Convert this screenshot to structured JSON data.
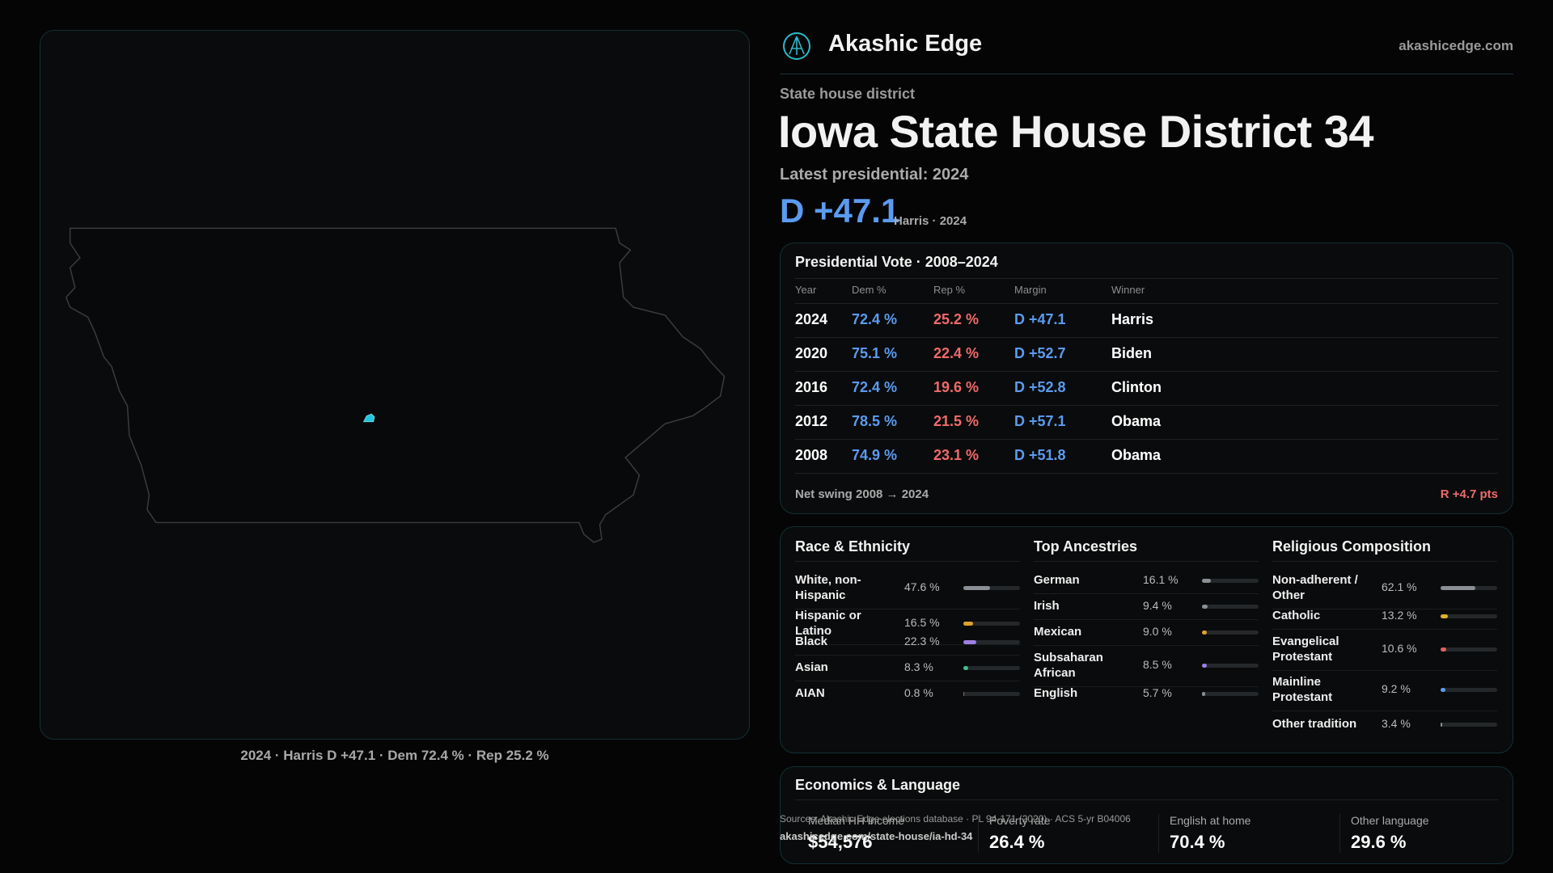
{
  "brand": {
    "name": "Akashic Edge",
    "url": "akashicedge.com"
  },
  "map": {
    "caption": "2024 · Harris D +47.1 · Dem 72.4 % · Rep 25.2 %"
  },
  "header": {
    "kicker": "State house district",
    "title": "Iowa State House District 34",
    "subtitle": "Latest presidential: 2024",
    "margin": "D +47.1",
    "margin_note": "Harris · 2024"
  },
  "presidential": {
    "title": "Presidential Vote · 2008–2024",
    "columns": [
      "Year",
      "Dem %",
      "Rep %",
      "Margin",
      "Winner"
    ],
    "rows": [
      [
        "2024",
        "72.4 %",
        "25.2 %",
        "D +47.1",
        "Harris"
      ],
      [
        "2020",
        "75.1 %",
        "22.4 %",
        "D +52.7",
        "Biden"
      ],
      [
        "2016",
        "72.4 %",
        "19.6 %",
        "D +52.8",
        "Clinton"
      ],
      [
        "2012",
        "78.5 %",
        "21.5 %",
        "D +57.1",
        "Obama"
      ],
      [
        "2008",
        "74.9 %",
        "23.1 %",
        "D +51.8",
        "Obama"
      ]
    ],
    "footer_label": "Net swing 2008 → 2024",
    "footer_value": "R +4.7 pts"
  },
  "demographics": [
    {
      "title": "Race & Ethnicity",
      "xlim": [
        0,
        100
      ],
      "rows": [
        {
          "label": "White, non-Hispanic",
          "value": 47.6,
          "value_label": "47.6 %",
          "color": "#8a8f96"
        },
        {
          "label": "Hispanic or Latino",
          "value": 16.5,
          "value_label": "16.5 %",
          "color": "#e0a030"
        },
        {
          "label": "Black",
          "value": 22.3,
          "value_label": "22.3 %",
          "color": "#9d7fe6"
        },
        {
          "label": "Asian",
          "value": 8.3,
          "value_label": "8.3 %",
          "color": "#3fbf8a"
        },
        {
          "label": "AIAN",
          "value": 0.8,
          "value_label": "0.8 %",
          "color": "#c0603a"
        }
      ]
    },
    {
      "title": "Top Ancestries",
      "xlim": [
        0,
        100
      ],
      "rows": [
        {
          "label": "German",
          "value": 16.1,
          "value_label": "16.1 %",
          "color": "#8a8f96"
        },
        {
          "label": "Irish",
          "value": 9.4,
          "value_label": "9.4 %",
          "color": "#8a8f96"
        },
        {
          "label": "Mexican",
          "value": 9.0,
          "value_label": "9.0 %",
          "color": "#e0a030"
        },
        {
          "label": "Subsaharan African",
          "value": 8.5,
          "value_label": "8.5 %",
          "color": "#9d7fe6"
        },
        {
          "label": "English",
          "value": 5.7,
          "value_label": "5.7 %",
          "color": "#8a8f96"
        }
      ]
    },
    {
      "title": "Religious Composition",
      "xlim": [
        0,
        100
      ],
      "rows": [
        {
          "label": "Non-adherent / Other",
          "value": 62.1,
          "value_label": "62.1 %",
          "color": "#8a8f96"
        },
        {
          "label": "Catholic",
          "value": 13.2,
          "value_label": "13.2 %",
          "color": "#e0b030"
        },
        {
          "label": "Evangelical Protestant",
          "value": 10.6,
          "value_label": "10.6 %",
          "color": "#e06060"
        },
        {
          "label": "Mainline Protestant",
          "value": 9.2,
          "value_label": "9.2 %",
          "color": "#5b9bf0"
        },
        {
          "label": "Other tradition",
          "value": 3.4,
          "value_label": "3.4 %",
          "color": "#8a8f96"
        }
      ]
    }
  ],
  "economics": {
    "title": "Economics & Language",
    "items": [
      {
        "label": "Median HH income",
        "value": "$54,576"
      },
      {
        "label": "Poverty rate",
        "value": "26.4 %"
      },
      {
        "label": "English at home",
        "value": "70.4 %"
      },
      {
        "label": "Other language",
        "value": "29.6 %"
      }
    ]
  },
  "sources": [
    "Sources: Akashic Edge elections database · PL 94-171 (2020) · ACS 5-yr B04006",
    "akashicedge.com/state-house/ia-hd-34"
  ]
}
